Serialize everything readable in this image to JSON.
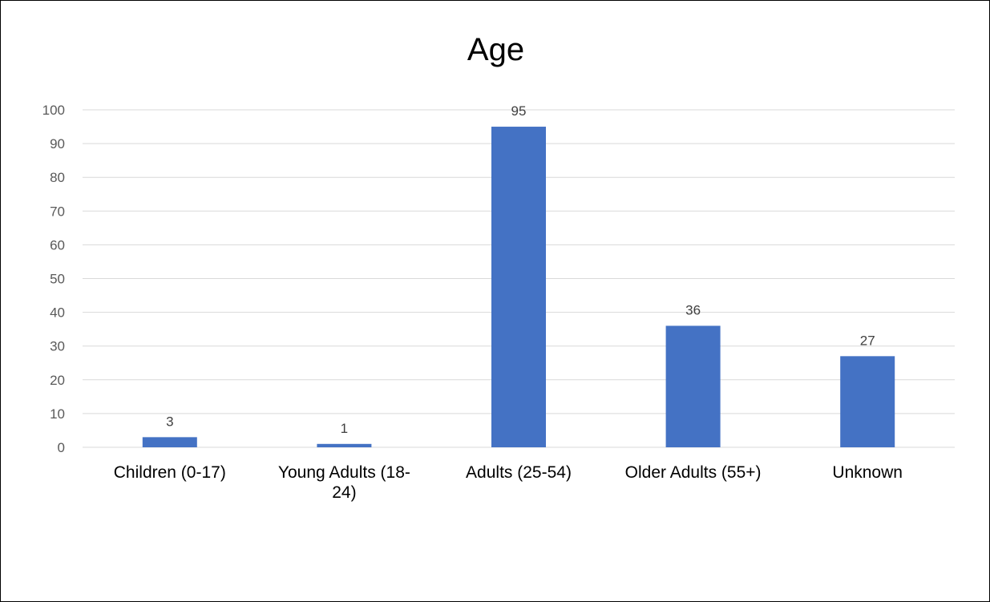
{
  "chart_data": {
    "type": "bar",
    "title": "Age",
    "categories": [
      [
        "Children (0-17)"
      ],
      [
        "Young Adults (18-",
        "24)"
      ],
      [
        "Adults (25-54)"
      ],
      [
        "Older Adults (55+)"
      ],
      [
        "Unknown"
      ]
    ],
    "values": [
      3,
      1,
      95,
      36,
      27
    ],
    "data_labels": [
      "3",
      "1",
      "95",
      "36",
      "27"
    ],
    "ylim": [
      0,
      100
    ],
    "yticks": [
      0,
      10,
      20,
      30,
      40,
      50,
      60,
      70,
      80,
      90,
      100
    ],
    "ytick_labels": [
      "0",
      "10",
      "20",
      "30",
      "40",
      "50",
      "60",
      "70",
      "80",
      "90",
      "100"
    ],
    "xlabel": "",
    "ylabel": "",
    "grid": true,
    "legend": "none",
    "colors": {
      "bar": "#4472C4",
      "grid": "#D9D9D9",
      "tick_text": "#595959",
      "data_label_text": "#404040"
    }
  }
}
